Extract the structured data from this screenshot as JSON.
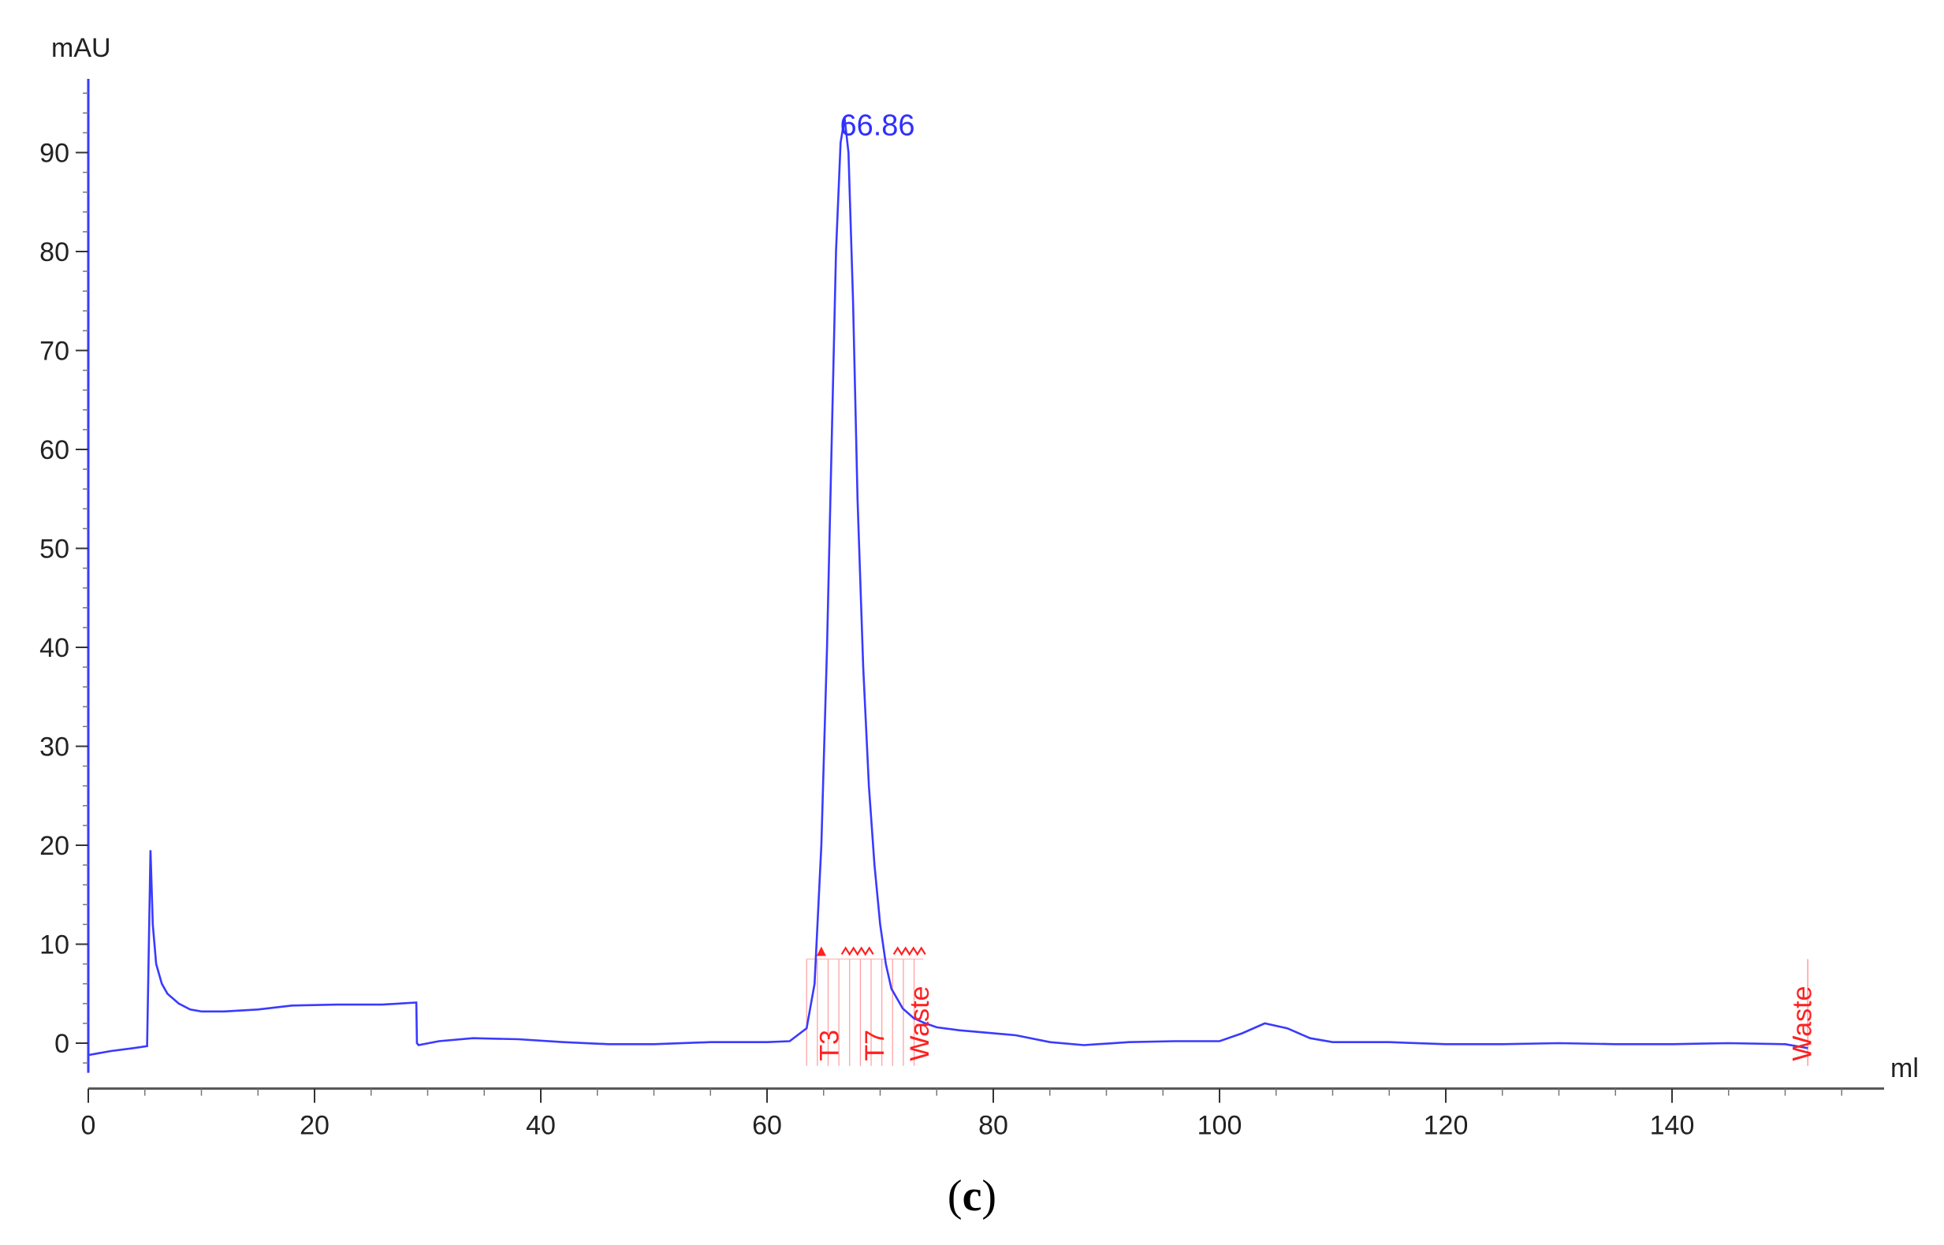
{
  "panel_label": {
    "open": "(",
    "letter": "c",
    "close": ")"
  },
  "chart_data": {
    "type": "line",
    "ylabel": "mAU",
    "xlabel": "ml",
    "xlim": [
      0,
      157
    ],
    "ylim": [
      -3,
      98
    ],
    "x_ticks": [
      0,
      20,
      40,
      60,
      80,
      100,
      120,
      140
    ],
    "y_ticks": [
      0,
      10,
      20,
      30,
      40,
      50,
      60,
      70,
      80,
      90
    ],
    "grid": false,
    "legend": "none",
    "colors": {
      "trace": "#3a3aff",
      "fractions": "#ff2020",
      "axis": "#3a3aff",
      "xaxis": "#555555"
    },
    "series": [
      {
        "x": [
          0,
          2,
          4,
          5.2,
          5.5,
          5.7,
          6,
          6.5,
          7,
          8,
          9,
          10,
          12,
          15,
          18,
          22,
          26,
          29,
          29.05,
          29.2,
          31,
          34,
          38,
          42,
          46,
          50,
          55,
          60,
          62,
          63.5,
          64.2,
          64.8,
          65.3,
          65.7,
          66.1,
          66.5,
          66.86,
          67.2,
          67.6,
          68,
          68.5,
          69,
          69.5,
          70,
          70.5,
          71,
          72,
          73,
          74,
          75,
          77,
          79,
          82,
          85,
          88,
          92,
          96,
          100,
          102,
          104,
          106,
          108,
          110,
          115,
          120,
          125,
          130,
          135,
          140,
          145,
          150,
          152
        ],
        "y": [
          -1.2,
          -0.8,
          -0.5,
          -0.3,
          19.5,
          12,
          8,
          6,
          5,
          4,
          3.4,
          3.2,
          3.2,
          3.4,
          3.8,
          3.9,
          3.9,
          4.1,
          0,
          -0.2,
          0.2,
          0.5,
          0.4,
          0.1,
          -0.1,
          -0.1,
          0.1,
          0.1,
          0.2,
          1.5,
          6,
          20,
          40,
          60,
          80,
          91,
          93.5,
          90,
          75,
          55,
          38,
          26,
          18,
          12,
          8,
          5.5,
          3.5,
          2.5,
          2,
          1.6,
          1.3,
          1.1,
          0.8,
          0.1,
          -0.2,
          0.1,
          0.2,
          0.2,
          1,
          2,
          1.5,
          0.5,
          0.1,
          0.1,
          -0.1,
          -0.1,
          0,
          -0.1,
          -0.1,
          0,
          -0.1,
          -0.5
        ]
      }
    ],
    "annotations": [
      {
        "label": "66.86",
        "x": 66.86,
        "y": 93.5
      }
    ],
    "fraction_region": {
      "start": 63.5,
      "end": 73.8,
      "top": 8.5,
      "step": 0.95
    },
    "fraction_labels": [
      {
        "label": "T3",
        "x": 66.3
      },
      {
        "label": "T7",
        "x": 70.3
      },
      {
        "label": "Waste",
        "x": 74.3
      },
      {
        "label": "Waste",
        "x": 152.3
      }
    ],
    "fraction_markers": [
      152
    ]
  }
}
